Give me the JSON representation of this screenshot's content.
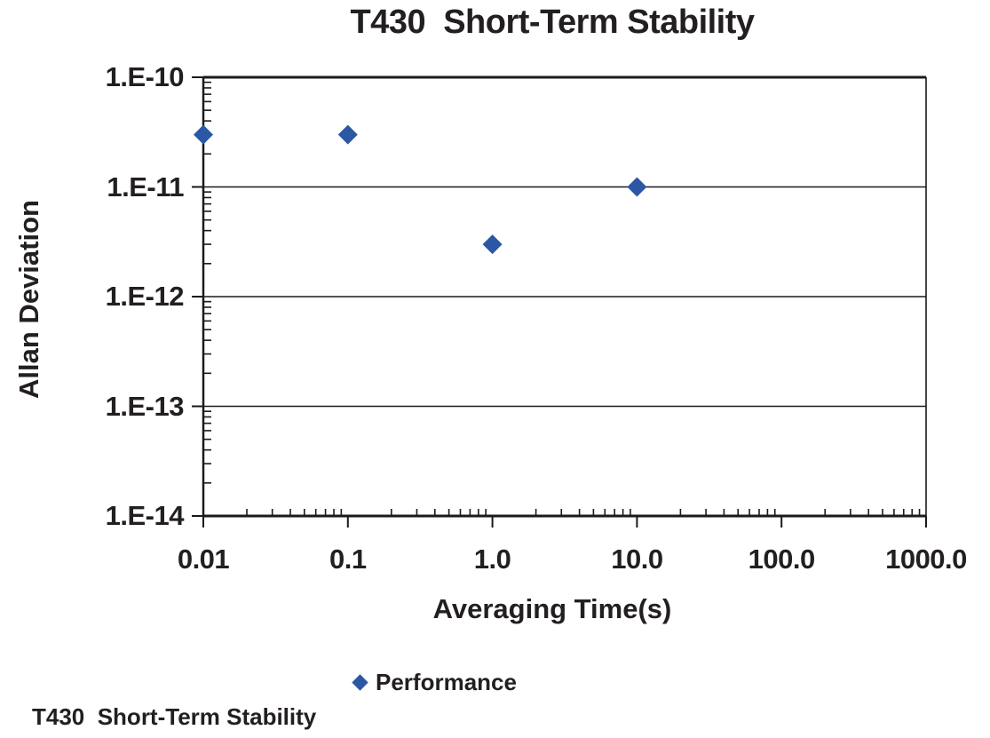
{
  "page": {
    "background": "#ffffff",
    "caption": "T430  Short-Term Stability"
  },
  "colors": {
    "marker_blue": "#2B57A5",
    "axis_black": "#1A1A1A",
    "text_dark": "#231F20"
  },
  "chart_data": {
    "type": "scatter",
    "title": "T430  Short-Term Stability",
    "xlabel": "Averaging Time(s)",
    "ylabel": "Allan Deviation",
    "x_scale": "log",
    "y_scale": "log",
    "xlim": [
      0.01,
      1000
    ],
    "ylim": [
      1e-14,
      1e-10
    ],
    "grid": "horizontal-major-gridlines",
    "legend_position": "bottom-center",
    "x_ticks": [
      {
        "value": 0.01,
        "label": "0.01"
      },
      {
        "value": 0.1,
        "label": "0.1"
      },
      {
        "value": 1,
        "label": "1.0"
      },
      {
        "value": 10,
        "label": "10.0"
      },
      {
        "value": 100,
        "label": "100.0"
      },
      {
        "value": 1000,
        "label": "1000.0"
      }
    ],
    "y_ticks": [
      {
        "value": 1e-10,
        "label": "1.E-10"
      },
      {
        "value": 1e-11,
        "label": "1.E-11"
      },
      {
        "value": 1e-12,
        "label": "1.E-12"
      },
      {
        "value": 1e-13,
        "label": "1.E-13"
      },
      {
        "value": 1e-14,
        "label": "1.E-14"
      }
    ],
    "series": [
      {
        "name": "Performance",
        "marker": "diamond",
        "color": "#2B57A5",
        "points": [
          {
            "x": 0.01,
            "y": 3e-11
          },
          {
            "x": 0.1,
            "y": 3e-11
          },
          {
            "x": 1.0,
            "y": 3e-12
          },
          {
            "x": 10.0,
            "y": 1e-11
          }
        ]
      }
    ]
  }
}
